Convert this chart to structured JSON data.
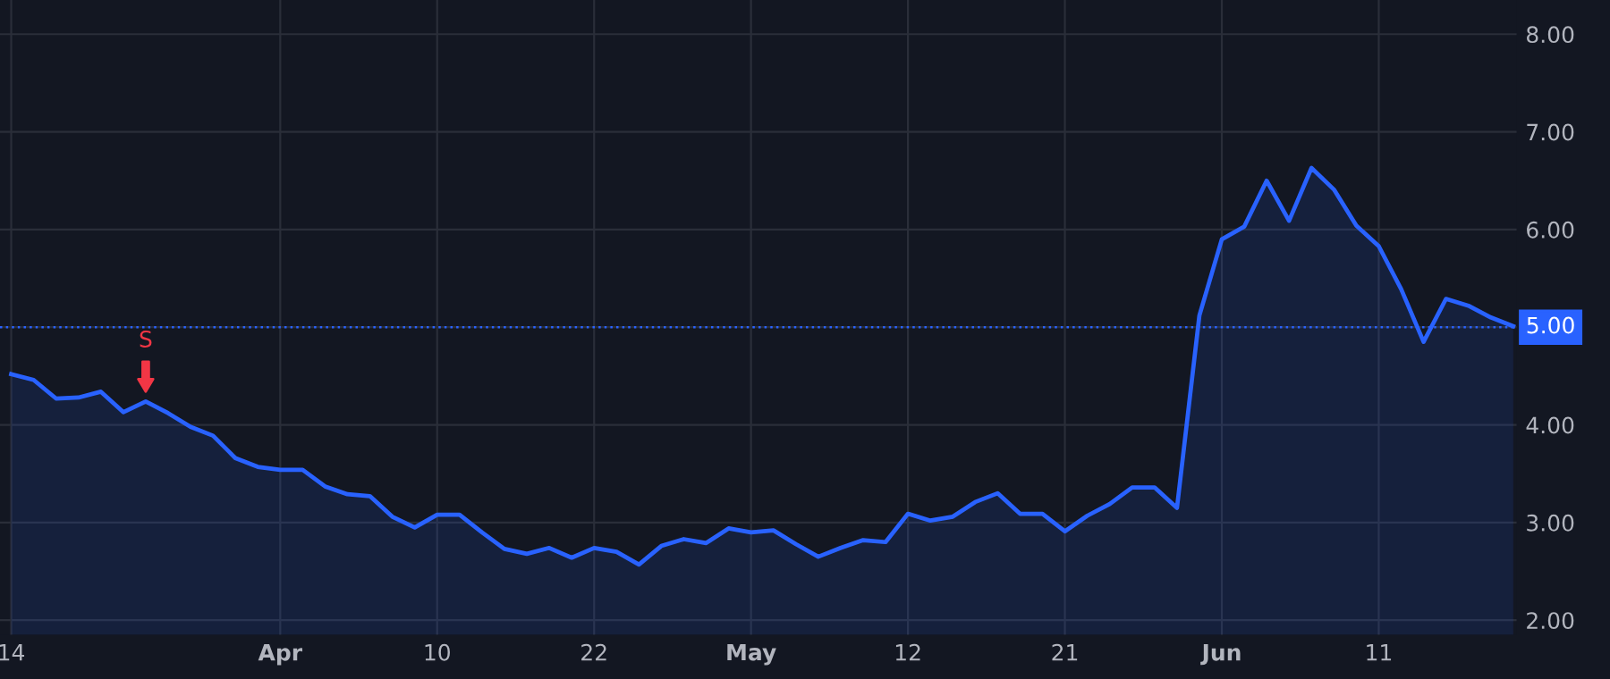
{
  "chart_data": {
    "type": "area",
    "categories": [
      "14",
      null,
      null,
      null,
      null,
      null,
      null,
      null,
      null,
      null,
      null,
      null,
      "Apr",
      null,
      null,
      null,
      null,
      null,
      null,
      "10",
      null,
      null,
      null,
      null,
      null,
      null,
      "22",
      null,
      null,
      null,
      null,
      null,
      null,
      "May",
      null,
      null,
      null,
      null,
      null,
      null,
      "12",
      null,
      null,
      null,
      null,
      null,
      null,
      "21",
      null,
      null,
      null,
      null,
      null,
      null,
      "Jun",
      null,
      null,
      null,
      null,
      null,
      null,
      "11",
      null,
      null,
      null,
      null,
      null,
      null
    ],
    "series": [
      {
        "color": "#2962ff",
        "values": [
          4.52,
          4.46,
          4.27,
          4.28,
          4.34,
          4.13,
          4.24,
          4.12,
          3.98,
          3.89,
          3.66,
          3.57,
          3.54,
          3.54,
          3.37,
          3.29,
          3.27,
          3.06,
          2.95,
          3.08,
          3.08,
          2.9,
          2.73,
          2.68,
          2.74,
          2.64,
          2.74,
          2.7,
          2.57,
          2.76,
          2.83,
          2.79,
          2.94,
          2.9,
          2.92,
          2.78,
          2.65,
          2.74,
          2.82,
          2.8,
          3.09,
          3.02,
          3.06,
          3.21,
          3.3,
          3.09,
          3.09,
          2.91,
          3.07,
          3.19,
          3.36,
          3.36,
          3.15,
          5.12,
          5.9,
          6.03,
          6.5,
          6.09,
          6.63,
          6.41,
          6.04,
          5.83,
          5.39,
          4.85,
          5.29,
          5.22,
          5.1,
          5.01
        ]
      }
    ],
    "ylim": [
      1.85,
      8.35
    ],
    "yticks": [
      {
        "value": 2,
        "label": "2.00"
      },
      {
        "value": 3,
        "label": "3.00"
      },
      {
        "value": 4,
        "label": "4.00"
      },
      {
        "value": 5,
        "label": "5.00"
      },
      {
        "value": 6,
        "label": "6.00"
      },
      {
        "value": 7,
        "label": "7.00"
      },
      {
        "value": 8,
        "label": "8.00"
      }
    ],
    "grid": true,
    "ref_lines": [
      {
        "axis": "y",
        "value": 5,
        "label": "5.00",
        "color": "#2962ff",
        "line_style": "dotted"
      }
    ],
    "annotations": [
      {
        "text": "S",
        "y": 4.24
      }
    ]
  }
}
